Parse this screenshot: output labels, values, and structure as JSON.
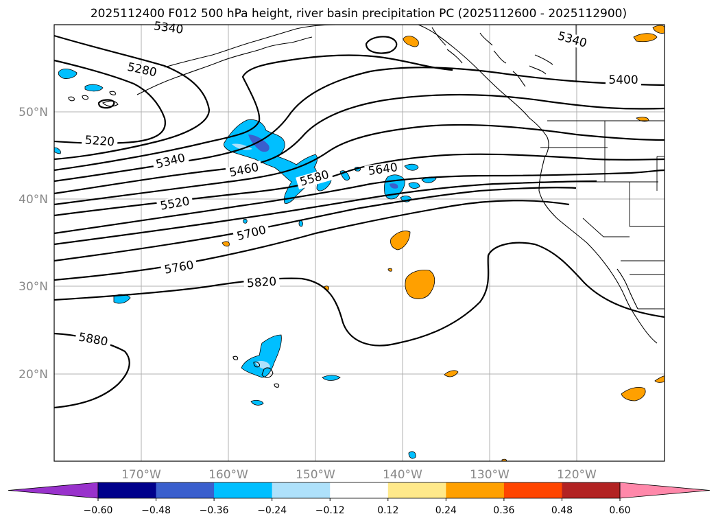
{
  "title": "2025112400 F012 500 hPa height, river basin precipitation PC (2025112600 - 2025112900)",
  "lon_labels": [
    "170°W",
    "160°W",
    "150°W",
    "140°W",
    "130°W",
    "120°W"
  ],
  "lat_labels": [
    "50°N",
    "40°N",
    "30°N",
    "20°N"
  ],
  "contour_labels": [
    "5340",
    "5340",
    "5280",
    "5400",
    "5220",
    "5340",
    "5460",
    "5580",
    "5640",
    "5520",
    "5700",
    "5760",
    "5820",
    "5880"
  ],
  "colorbar": {
    "ticks": [
      "−0.60",
      "−0.48",
      "−0.36",
      "−0.24",
      "−0.12",
      "0.12",
      "0.24",
      "0.36",
      "0.48",
      "0.60"
    ],
    "colors": [
      "#9932cc",
      "#00008b",
      "#3a5fcd",
      "#00bfff",
      "#aee1fb",
      "#ffffff",
      "#ffe98a",
      "#ffa000",
      "#ff4500",
      "#b22222",
      "#ff88aa"
    ]
  },
  "precip_colors": {
    "light_blue": "#00bfff",
    "pale_blue": "#aee1fb",
    "dark_blue": "#3a5fcd",
    "orange": "#ffa000"
  }
}
